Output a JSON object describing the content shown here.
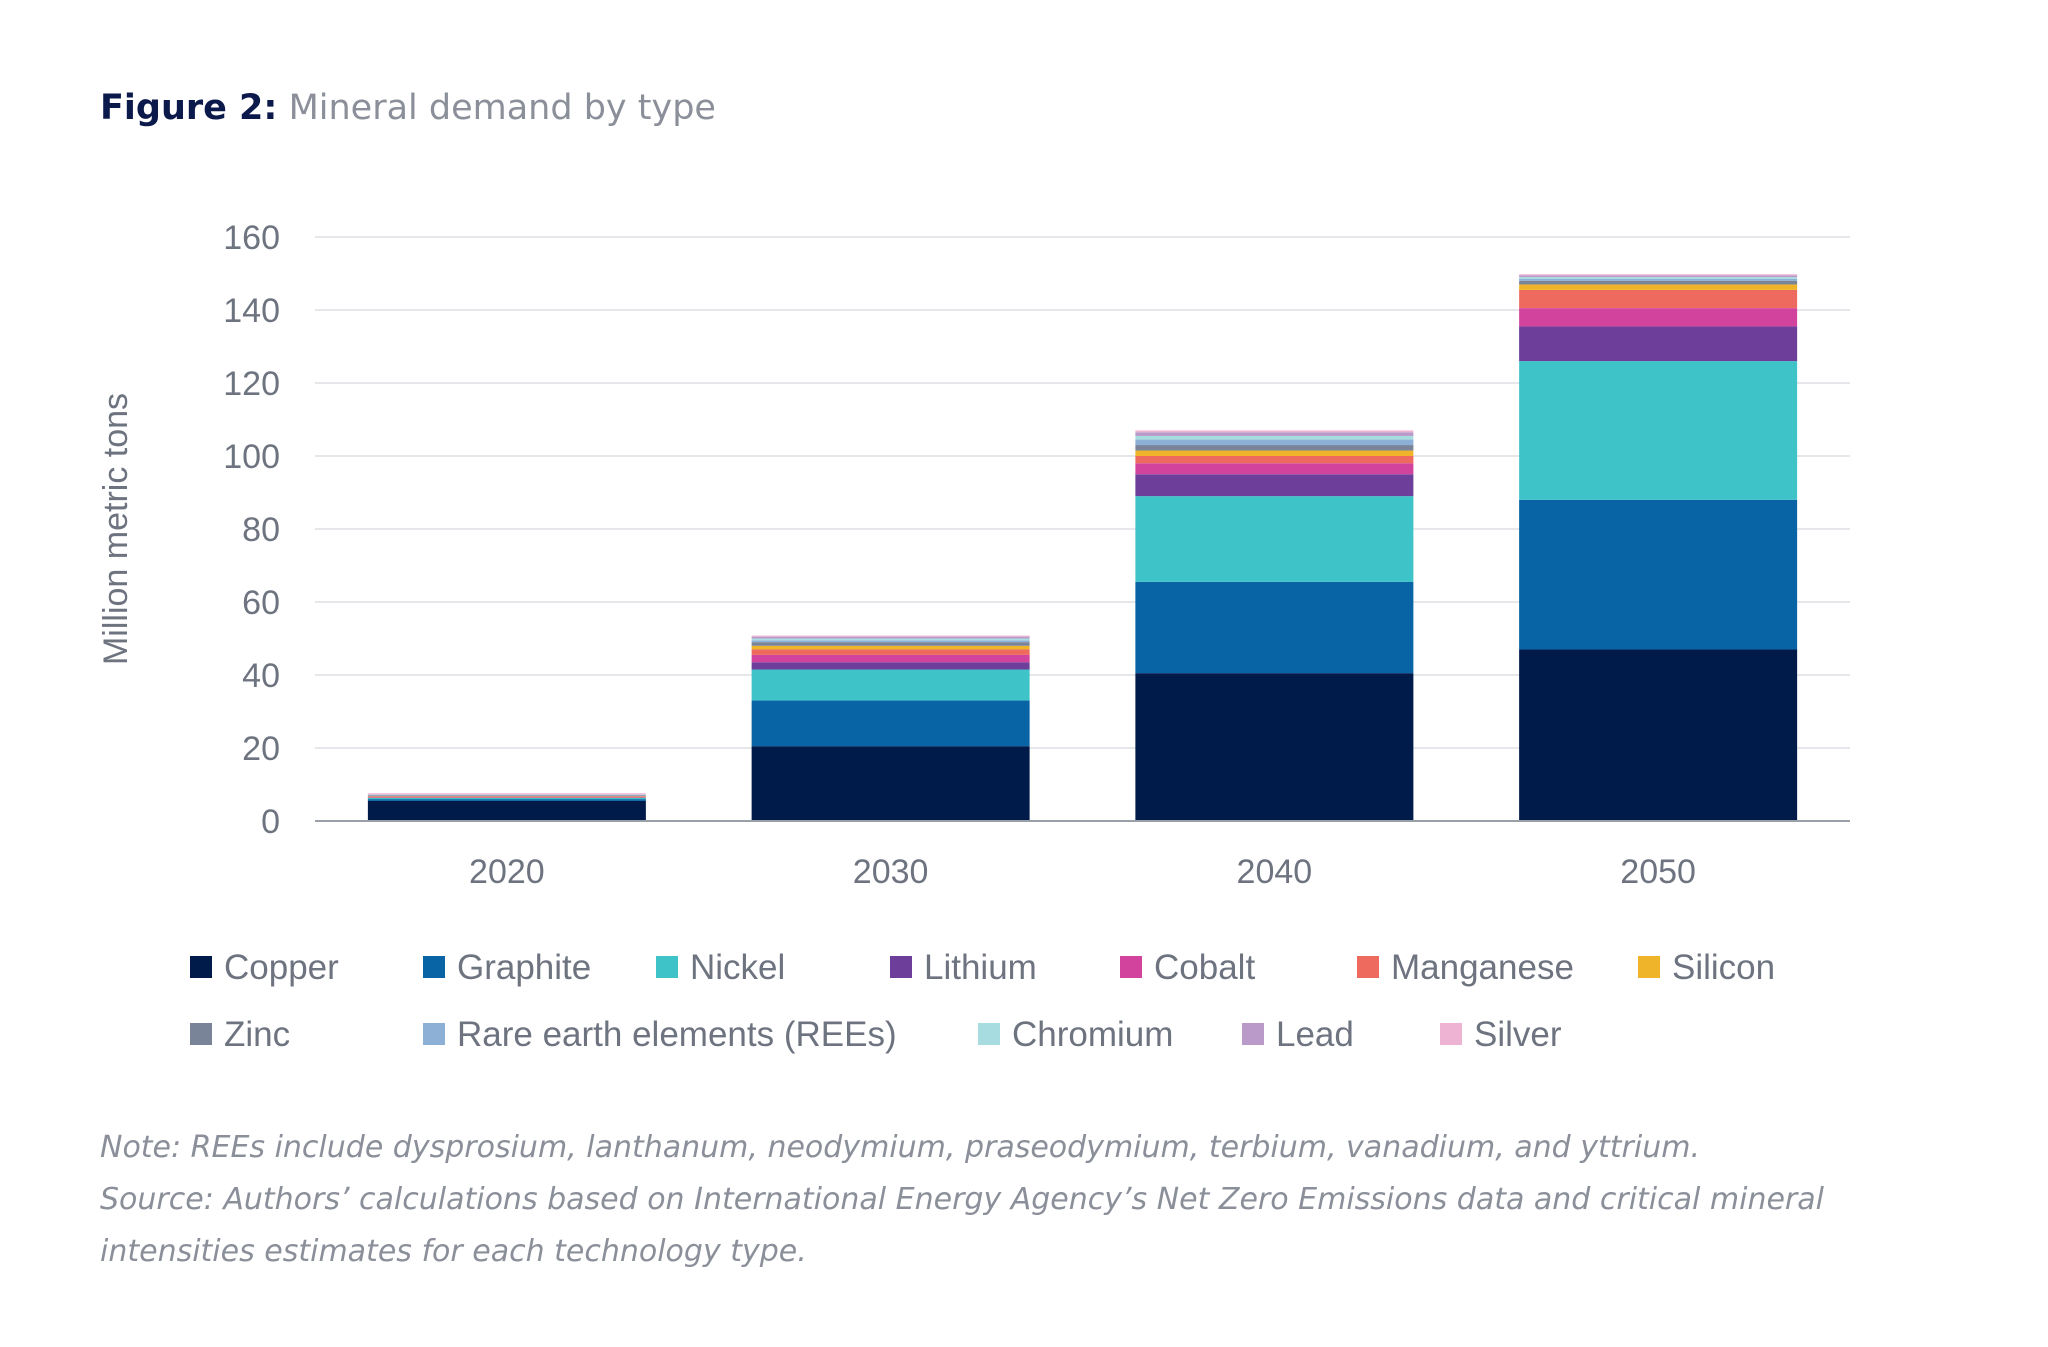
{
  "figure": {
    "label": "Figure 2:",
    "title": "Mineral demand by type"
  },
  "notes": {
    "note": "Note: REEs include dysprosium, lanthanum, neodymium, praseodymium, terbium, vanadium, and yttrium.",
    "source_line1": "Source: Authors’ calculations based on International Energy Agency’s Net Zero Emissions data and critical mineral",
    "source_line2": "intensities estimates for each technology type."
  },
  "chart_data": {
    "type": "bar",
    "stacked": true,
    "title": "",
    "xlabel": "",
    "ylabel": "Million metric tons",
    "ylim": [
      0,
      160
    ],
    "yticks": [
      0,
      20,
      40,
      60,
      80,
      100,
      120,
      140,
      160
    ],
    "grid": true,
    "legend_position": "bottom",
    "categories": [
      "2020",
      "2030",
      "2040",
      "2050"
    ],
    "series": [
      {
        "name": "Copper",
        "color": "#001a4a",
        "values": [
          5.5,
          20.5,
          40.5,
          47
        ]
      },
      {
        "name": "Graphite",
        "color": "#0864a4",
        "values": [
          0.5,
          12.5,
          25,
          41
        ]
      },
      {
        "name": "Nickel",
        "color": "#3ec3c8",
        "values": [
          0.3,
          8.5,
          23.5,
          38
        ]
      },
      {
        "name": "Lithium",
        "color": "#6e3f9a",
        "values": [
          0.1,
          2,
          6,
          9.5
        ]
      },
      {
        "name": "Cobalt",
        "color": "#d2439e",
        "values": [
          0.1,
          2,
          3,
          5
        ]
      },
      {
        "name": "Manganese",
        "color": "#ee6a5f",
        "values": [
          0.2,
          1.5,
          2,
          5
        ]
      },
      {
        "name": "Silicon",
        "color": "#f0b42a",
        "values": [
          0.1,
          1,
          1.5,
          1.5
        ]
      },
      {
        "name": "Zinc",
        "color": "#7a8499",
        "values": [
          0.2,
          1,
          1.5,
          1
        ]
      },
      {
        "name": "Rare earth elements (REEs)",
        "color": "#8cb0d6",
        "values": [
          0.1,
          0.5,
          1.5,
          0.5
        ]
      },
      {
        "name": "Chromium",
        "color": "#a7dde0",
        "values": [
          0.1,
          0.5,
          1,
          0.5
        ]
      },
      {
        "name": "Lead",
        "color": "#b99ac9",
        "values": [
          0.1,
          0.5,
          1,
          0.5
        ]
      },
      {
        "name": "Silver",
        "color": "#eeb3d3",
        "values": [
          0.3,
          0.3,
          0.5,
          0.3
        ]
      }
    ]
  }
}
